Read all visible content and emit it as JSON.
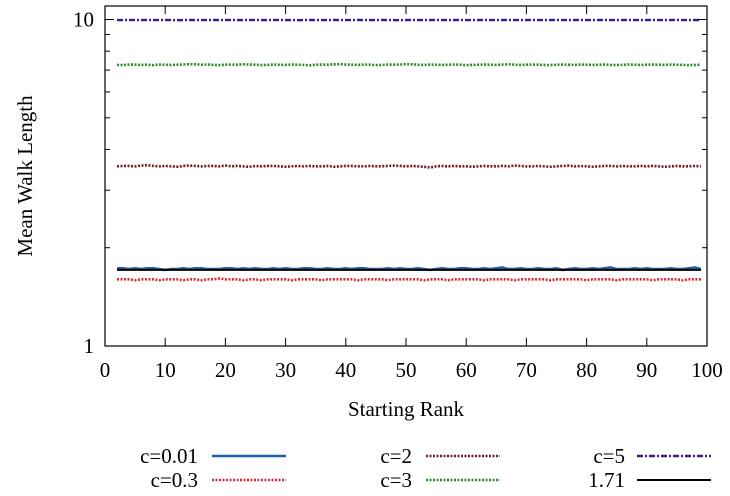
{
  "chart_data": {
    "type": "line",
    "xlabel": "Starting Rank",
    "ylabel": "Mean Walk Length",
    "xlim": [
      0,
      100
    ],
    "ylim": [
      1,
      11
    ],
    "yscale": "log",
    "xticks": [
      0,
      10,
      20,
      30,
      40,
      50,
      60,
      70,
      80,
      90,
      100
    ],
    "xtick_labels": [
      "0",
      "10",
      "20",
      "30",
      "40",
      "50",
      "60",
      "70",
      "80",
      "90",
      "100"
    ],
    "yticks": [
      1,
      10
    ],
    "ytick_labels": [
      "1",
      "10"
    ],
    "grid": false,
    "legend_position": "bottom",
    "x": [
      2,
      3,
      4,
      5,
      6,
      7,
      8,
      9,
      10,
      11,
      12,
      13,
      14,
      15,
      16,
      17,
      18,
      19,
      20,
      21,
      22,
      23,
      24,
      25,
      26,
      27,
      28,
      29,
      30,
      31,
      32,
      33,
      34,
      35,
      36,
      37,
      38,
      39,
      40,
      41,
      42,
      43,
      44,
      45,
      46,
      47,
      48,
      49,
      50,
      51,
      52,
      53,
      54,
      55,
      56,
      57,
      58,
      59,
      60,
      61,
      62,
      63,
      64,
      65,
      66,
      67,
      68,
      69,
      70,
      71,
      72,
      73,
      74,
      75,
      76,
      77,
      78,
      79,
      80,
      81,
      82,
      83,
      84,
      85,
      86,
      87,
      88,
      89,
      90,
      91,
      92,
      93,
      94,
      95,
      96,
      97,
      98,
      99
    ],
    "series": [
      {
        "name": "c=0.01",
        "color": "#1f5fa6",
        "dash": "solid",
        "values": [
          1.73,
          1.73,
          1.72,
          1.73,
          1.72,
          1.73,
          1.73,
          1.72,
          1.71,
          1.72,
          1.72,
          1.73,
          1.72,
          1.73,
          1.73,
          1.72,
          1.72,
          1.72,
          1.73,
          1.73,
          1.72,
          1.73,
          1.72,
          1.73,
          1.72,
          1.72,
          1.73,
          1.72,
          1.73,
          1.72,
          1.72,
          1.73,
          1.73,
          1.72,
          1.72,
          1.73,
          1.72,
          1.72,
          1.73,
          1.72,
          1.73,
          1.73,
          1.72,
          1.72,
          1.72,
          1.73,
          1.72,
          1.73,
          1.72,
          1.72,
          1.73,
          1.72,
          1.71,
          1.72,
          1.73,
          1.72,
          1.72,
          1.73,
          1.73,
          1.72,
          1.72,
          1.73,
          1.72,
          1.73,
          1.74,
          1.72,
          1.72,
          1.73,
          1.72,
          1.72,
          1.73,
          1.72,
          1.72,
          1.73,
          1.71,
          1.72,
          1.73,
          1.72,
          1.72,
          1.73,
          1.72,
          1.73,
          1.74,
          1.72,
          1.72,
          1.72,
          1.73,
          1.72,
          1.73,
          1.72,
          1.72,
          1.72,
          1.73,
          1.72,
          1.72,
          1.73,
          1.74,
          1.72
        ]
      },
      {
        "name": "c=0.3",
        "color": "#e02b2b",
        "dash": "dotted",
        "values": [
          1.6,
          1.6,
          1.6,
          1.59,
          1.6,
          1.6,
          1.6,
          1.59,
          1.6,
          1.6,
          1.6,
          1.59,
          1.6,
          1.6,
          1.59,
          1.6,
          1.6,
          1.61,
          1.6,
          1.6,
          1.6,
          1.59,
          1.6,
          1.6,
          1.59,
          1.6,
          1.6,
          1.6,
          1.6,
          1.59,
          1.6,
          1.6,
          1.6,
          1.6,
          1.59,
          1.6,
          1.6,
          1.6,
          1.6,
          1.6,
          1.59,
          1.6,
          1.6,
          1.6,
          1.6,
          1.59,
          1.6,
          1.6,
          1.6,
          1.6,
          1.6,
          1.59,
          1.6,
          1.6,
          1.6,
          1.59,
          1.6,
          1.6,
          1.6,
          1.6,
          1.6,
          1.59,
          1.6,
          1.6,
          1.6,
          1.6,
          1.59,
          1.6,
          1.6,
          1.6,
          1.6,
          1.6,
          1.59,
          1.6,
          1.6,
          1.6,
          1.6,
          1.6,
          1.59,
          1.6,
          1.6,
          1.6,
          1.6,
          1.59,
          1.6,
          1.6,
          1.6,
          1.6,
          1.6,
          1.59,
          1.6,
          1.6,
          1.6,
          1.6,
          1.59,
          1.6,
          1.6,
          1.6
        ]
      },
      {
        "name": "c=2",
        "color": "#7a1a1a",
        "dash": "dotted",
        "values": [
          3.55,
          3.56,
          3.56,
          3.55,
          3.57,
          3.58,
          3.56,
          3.55,
          3.56,
          3.55,
          3.54,
          3.56,
          3.57,
          3.56,
          3.55,
          3.56,
          3.56,
          3.55,
          3.57,
          3.55,
          3.56,
          3.55,
          3.54,
          3.56,
          3.55,
          3.56,
          3.56,
          3.55,
          3.54,
          3.55,
          3.56,
          3.55,
          3.56,
          3.55,
          3.55,
          3.56,
          3.54,
          3.55,
          3.56,
          3.56,
          3.55,
          3.55,
          3.56,
          3.55,
          3.55,
          3.56,
          3.57,
          3.56,
          3.55,
          3.56,
          3.55,
          3.54,
          3.52,
          3.55,
          3.56,
          3.55,
          3.56,
          3.55,
          3.55,
          3.54,
          3.55,
          3.56,
          3.55,
          3.55,
          3.56,
          3.55,
          3.57,
          3.56,
          3.55,
          3.55,
          3.56,
          3.55,
          3.54,
          3.55,
          3.56,
          3.57,
          3.55,
          3.56,
          3.55,
          3.54,
          3.55,
          3.56,
          3.56,
          3.55,
          3.56,
          3.55,
          3.55,
          3.56,
          3.55,
          3.56,
          3.55,
          3.54,
          3.55,
          3.56,
          3.55,
          3.55,
          3.56,
          3.55
        ]
      },
      {
        "name": "c=3",
        "color": "#2e8b2e",
        "dash": "dotted",
        "values": [
          7.26,
          7.25,
          7.28,
          7.27,
          7.26,
          7.27,
          7.25,
          7.28,
          7.27,
          7.26,
          7.27,
          7.28,
          7.3,
          7.29,
          7.27,
          7.28,
          7.26,
          7.25,
          7.27,
          7.28,
          7.27,
          7.29,
          7.28,
          7.27,
          7.25,
          7.26,
          7.28,
          7.27,
          7.26,
          7.28,
          7.27,
          7.26,
          7.24,
          7.27,
          7.28,
          7.27,
          7.29,
          7.3,
          7.28,
          7.27,
          7.26,
          7.28,
          7.27,
          7.25,
          7.26,
          7.28,
          7.27,
          7.28,
          7.3,
          7.29,
          7.27,
          7.26,
          7.28,
          7.27,
          7.26,
          7.27,
          7.28,
          7.27,
          7.25,
          7.26,
          7.27,
          7.28,
          7.27,
          7.26,
          7.28,
          7.29,
          7.27,
          7.26,
          7.27,
          7.28,
          7.27,
          7.26,
          7.25,
          7.27,
          7.28,
          7.27,
          7.26,
          7.28,
          7.27,
          7.26,
          7.27,
          7.28,
          7.26,
          7.25,
          7.27,
          7.28,
          7.27,
          7.26,
          7.27,
          7.28,
          7.27,
          7.26,
          7.28,
          7.27,
          7.26,
          7.25,
          7.26,
          7.27
        ]
      },
      {
        "name": "c=5",
        "color": "#3a1a8a",
        "dash": "dashdot",
        "values": [
          9.96,
          9.96,
          9.97,
          9.96,
          9.96,
          9.97,
          9.96,
          9.96,
          9.97,
          9.96,
          9.95,
          9.96,
          9.97,
          9.96,
          9.96,
          9.96,
          9.97,
          9.96,
          9.96,
          9.97,
          9.96,
          9.96,
          9.96,
          9.97,
          9.96,
          9.96,
          9.96,
          9.97,
          9.96,
          9.96,
          9.95,
          9.96,
          9.97,
          9.96,
          9.96,
          9.96,
          9.97,
          9.96,
          9.96,
          9.96,
          9.97,
          9.96,
          9.96,
          9.96,
          9.97,
          9.96,
          9.96,
          9.95,
          9.96,
          9.97,
          9.96,
          9.96,
          9.96,
          9.97,
          9.96,
          9.96,
          9.96,
          9.97,
          9.96,
          9.96,
          9.96,
          9.97,
          9.96,
          9.96,
          9.96,
          9.97,
          9.96,
          9.96,
          9.96,
          9.97,
          9.96,
          9.96,
          9.96,
          9.97,
          9.96,
          9.96,
          9.96,
          9.97,
          9.96,
          9.96,
          9.96,
          9.97,
          9.96,
          9.96,
          9.96,
          9.97,
          9.96,
          9.96,
          9.96,
          9.97,
          9.96,
          9.96,
          9.96,
          9.97,
          9.96,
          9.96,
          9.96,
          9.96
        ]
      },
      {
        "name": "1.71",
        "color": "#000000",
        "dash": "solid",
        "constant": 1.71
      }
    ]
  }
}
